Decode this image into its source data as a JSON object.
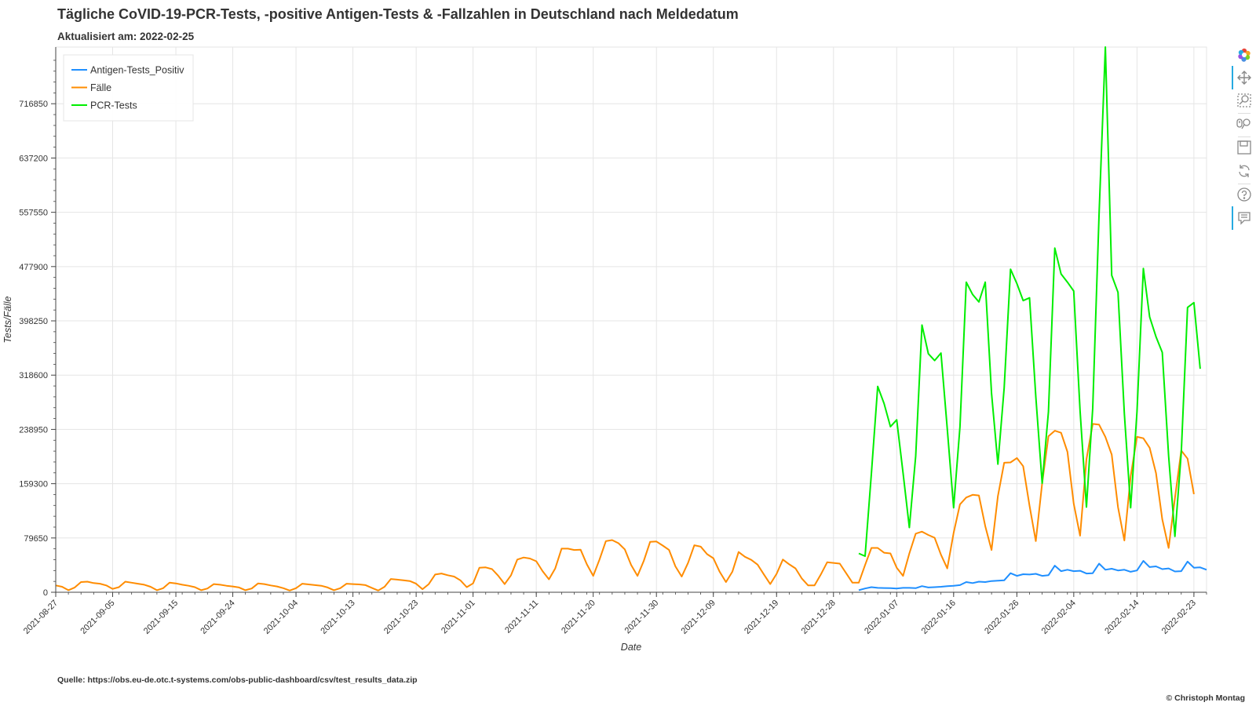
{
  "colors": {
    "antigen": "#1f8fff",
    "faelle": "#ff8c00",
    "pcr": "#00ee00",
    "grid": "#e5e5e5",
    "axis": "#444444"
  },
  "icons": [
    "bokeh-logo-icon",
    "pan-icon",
    "box-zoom-icon",
    "wheel-zoom-icon",
    "save-icon",
    "reset-icon",
    "help-icon",
    "hover-icon"
  ],
  "chart_data": {
    "type": "line",
    "title": "Tägliche CoVID-19-PCR-Tests, -positive Antigen-Tests & -Fallzahlen in Deutschland nach Meldedatum",
    "subtitle": "Aktualisiert am: 2022-02-25",
    "xlabel": "Date",
    "ylabel": "Tests/Fälle",
    "x_start": "2021-08-27",
    "x_end": "2022-02-24",
    "xlim": [
      "2021-08-27",
      "2022-02-25"
    ],
    "ylim": [
      0,
      800000
    ],
    "grid": true,
    "legend_position": "top-left",
    "x_ticks": [
      "2021-08-27",
      "2021-09-05",
      "2021-09-15",
      "2021-09-24",
      "2021-10-04",
      "2021-10-13",
      "2021-10-23",
      "2021-11-01",
      "2021-11-11",
      "2021-11-20",
      "2021-11-30",
      "2021-12-09",
      "2021-12-19",
      "2021-12-28",
      "2022-01-07",
      "2022-01-16",
      "2022-01-26",
      "2022-02-04",
      "2022-02-14",
      "2022-02-23"
    ],
    "y_ticks": [
      0,
      79650,
      159300,
      238950,
      318600,
      398250,
      477900,
      557550,
      637200,
      716850
    ],
    "series": [
      {
        "name": "Antigen-Tests_Positiv",
        "x_start": "2022-01-01",
        "values": [
          3000,
          5500,
          7500,
          6500,
          6200,
          6000,
          5500,
          6500,
          6500,
          6000,
          9000,
          7000,
          7500,
          8000,
          9000,
          9500,
          10500,
          15000,
          13500,
          15500,
          15000,
          16500,
          17000,
          17500,
          28000,
          24000,
          26500,
          26000,
          27000,
          24000,
          25000,
          39000,
          31000,
          33000,
          31000,
          31500,
          27500,
          28000,
          42000,
          33000,
          34500,
          32000,
          33000,
          30000,
          32000,
          46000,
          37000,
          38000,
          34000,
          35000,
          30500,
          31000,
          45000,
          36000,
          36500,
          33000
        ]
      },
      {
        "name": "Fälle",
        "x_start": "2021-08-27",
        "values": [
          10000,
          8000,
          3000,
          7000,
          15000,
          15500,
          13500,
          12500,
          10000,
          5000,
          7500,
          15500,
          14000,
          12500,
          11000,
          8000,
          3000,
          6000,
          14000,
          13000,
          11000,
          9500,
          7500,
          3000,
          5500,
          12000,
          11000,
          9500,
          8500,
          7000,
          3000,
          5500,
          13000,
          12000,
          10000,
          8500,
          6000,
          2500,
          6000,
          12500,
          11500,
          10500,
          9500,
          7000,
          3000,
          6000,
          12500,
          12000,
          11500,
          10500,
          6500,
          2500,
          8000,
          19500,
          18500,
          17500,
          16500,
          12500,
          4500,
          12000,
          26000,
          27500,
          25000,
          23000,
          17500,
          7500,
          13000,
          36000,
          36500,
          34000,
          24000,
          12000,
          25000,
          48000,
          51000,
          49500,
          45500,
          31000,
          19000,
          35000,
          64000,
          64000,
          62000,
          62500,
          41000,
          24000,
          48000,
          75000,
          76500,
          72000,
          63000,
          40000,
          24000,
          46000,
          74000,
          74500,
          68500,
          62000,
          38000,
          23000,
          43000,
          69000,
          67000,
          56000,
          50000,
          30000,
          15000,
          30000,
          59000,
          52000,
          47500,
          40500,
          26000,
          12000,
          27000,
          48000,
          41000,
          35000,
          20000,
          10000,
          10000,
          26000,
          44000,
          43000,
          42000,
          28000,
          14000,
          14000,
          40000,
          65000,
          65000,
          58000,
          57000,
          36000,
          24000,
          57000,
          86000,
          89000,
          84000,
          80000,
          55000,
          35000,
          87000,
          129000,
          139000,
          143000,
          142000,
          97000,
          62000,
          141000,
          190000,
          190500,
          197000,
          185000,
          127000,
          75000,
          160000,
          229000,
          237000,
          234000,
          206000,
          130000,
          83000,
          195000,
          247000,
          246000,
          228000,
          202000,
          125000,
          76000,
          170000,
          228000,
          226000,
          212000,
          175000,
          107000,
          65000,
          138000,
          208000,
          196000,
          144000
        ]
      },
      {
        "name": "PCR-Tests",
        "x_start": "2022-01-01",
        "values": [
          57000,
          53000,
          175000,
          302000,
          277000,
          243000,
          253000,
          175000,
          95000,
          200000,
          392000,
          350000,
          340000,
          351000,
          240000,
          124000,
          243000,
          455000,
          437000,
          426000,
          455000,
          292000,
          188000,
          300000,
          474000,
          453000,
          428000,
          432000,
          287000,
          160000,
          265000,
          505000,
          467000,
          455000,
          442000,
          266000,
          125000,
          270000,
          555000,
          800000,
          465000,
          440000,
          262000,
          124000,
          265000,
          475000,
          404000,
          375000,
          352000,
          200000,
          82000,
          205000,
          418000,
          425000,
          328000
        ]
      }
    ]
  },
  "source_label": "Quelle: https://obs.eu-de.otc.t-systems.com/obs-public-dashboard/csv/test_results_data.zip",
  "credit_label": "© Christoph Montag"
}
